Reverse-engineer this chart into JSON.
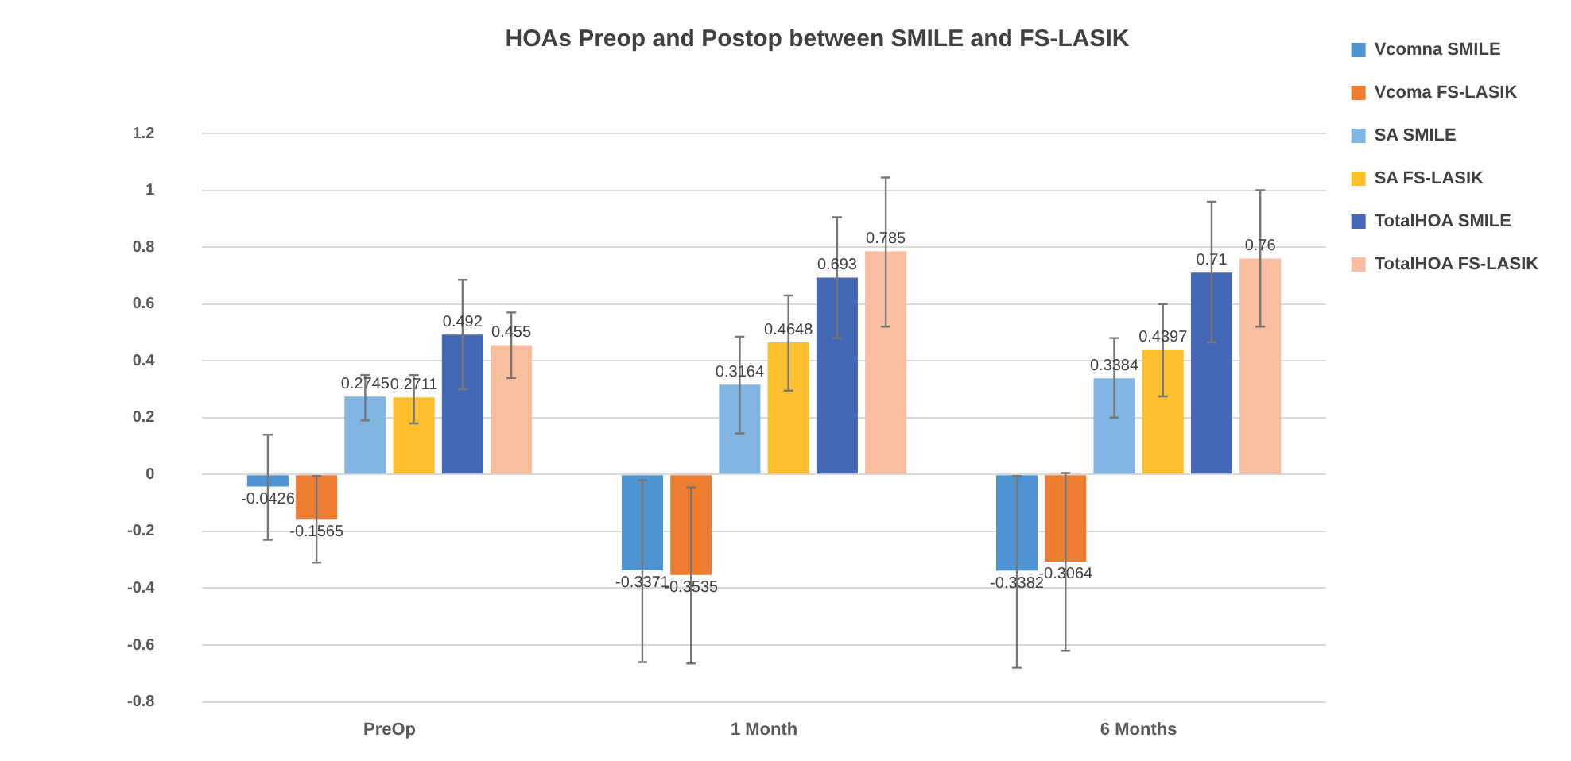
{
  "chart_data": {
    "type": "bar",
    "title": "HOAs Preop and Postop between SMILE and FS-LASIK",
    "categories": [
      "PreOp",
      "1 Month",
      "6 Months"
    ],
    "series": [
      {
        "name": "Vcomna SMILE",
        "color": "#4e94d2",
        "values": [
          -0.0426,
          -0.3371,
          -0.3382
        ],
        "errors": [
          [
            -0.23,
            0.14
          ],
          [
            -0.66,
            -0.02
          ],
          [
            -0.68,
            -0.005
          ]
        ]
      },
      {
        "name": "Vcoma FS-LASIK",
        "color": "#ed7d31",
        "values": [
          -0.1565,
          -0.3535,
          -0.3064
        ],
        "errors": [
          [
            -0.31,
            -0.005
          ],
          [
            -0.665,
            -0.045
          ],
          [
            -0.62,
            0.005
          ]
        ]
      },
      {
        "name": "SA SMILE",
        "color": "#82b6e2",
        "values": [
          0.2745,
          0.3164,
          0.3384
        ],
        "errors": [
          [
            0.19,
            0.35
          ],
          [
            0.145,
            0.485
          ],
          [
            0.2,
            0.48
          ]
        ]
      },
      {
        "name": "SA FS-LASIK",
        "color": "#fdbf2d",
        "values": [
          0.2711,
          0.4648,
          0.4397
        ],
        "errors": [
          [
            0.18,
            0.35
          ],
          [
            0.295,
            0.63
          ],
          [
            0.275,
            0.6
          ]
        ]
      },
      {
        "name": "TotalHOA SMILE",
        "color": "#4468b6",
        "values": [
          0.492,
          0.693,
          0.71
        ],
        "errors": [
          [
            0.3,
            0.685
          ],
          [
            0.48,
            0.905
          ],
          [
            0.465,
            0.96
          ]
        ]
      },
      {
        "name": "TotalHOA FS-LASIK",
        "color": "#f8bea0",
        "values": [
          0.455,
          0.785,
          0.76
        ],
        "errors": [
          [
            0.34,
            0.57
          ],
          [
            0.52,
            1.045
          ],
          [
            0.52,
            1.0
          ]
        ]
      }
    ],
    "ylim": [
      -0.8,
      1.2
    ],
    "yticks": [
      -0.8,
      -0.6,
      -0.4,
      -0.2,
      0,
      0.2,
      0.4,
      0.6,
      0.8,
      1,
      1.2
    ],
    "grid": "y",
    "legend": "right",
    "data_labels": true
  }
}
